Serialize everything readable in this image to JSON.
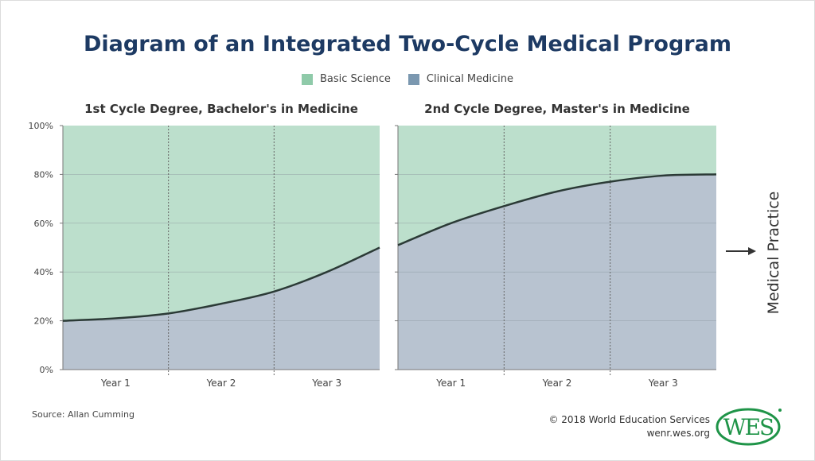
{
  "title": "Diagram of an Integrated Two-Cycle Medical Program",
  "legend": [
    {
      "label": "Basic Science",
      "color": "#8fcaa9"
    },
    {
      "label": "Clinical Medicine",
      "color": "#7b98b0"
    }
  ],
  "colors": {
    "basic_fill": "#bcdfcc",
    "clinical_fill": "#b8c3d0",
    "line": "#2b3a36"
  },
  "side_label": "Medical Practice",
  "source": "Source: Allan Cumming",
  "credit": {
    "line1": "© 2018 World Education Services",
    "line2": "wenr.wes.org"
  },
  "logo_text": "WES",
  "chart_data": [
    {
      "type": "area",
      "title": "1st Cycle Degree, Bachelor's in Medicine",
      "categories": [
        "Year 1",
        "Year 2",
        "Year 3"
      ],
      "x": [
        0,
        0.5,
        1,
        1.5,
        2,
        2.5,
        3
      ],
      "series": [
        {
          "name": "Clinical Medicine",
          "values": [
            20,
            21,
            23,
            27,
            32,
            40,
            50
          ]
        }
      ],
      "ylim": [
        0,
        100
      ],
      "yticks": [
        "0%",
        "20%",
        "40%",
        "60%",
        "80%",
        "100%"
      ],
      "grid": true
    },
    {
      "type": "area",
      "title": "2nd Cycle Degree, Master's in Medicine",
      "categories": [
        "Year 1",
        "Year 2",
        "Year 3"
      ],
      "x": [
        0,
        0.5,
        1,
        1.5,
        2,
        2.5,
        3
      ],
      "series": [
        {
          "name": "Clinical Medicine",
          "values": [
            51,
            60,
            67,
            73,
            77,
            79.5,
            80
          ]
        }
      ],
      "ylim": [
        0,
        100
      ],
      "grid": true
    }
  ]
}
